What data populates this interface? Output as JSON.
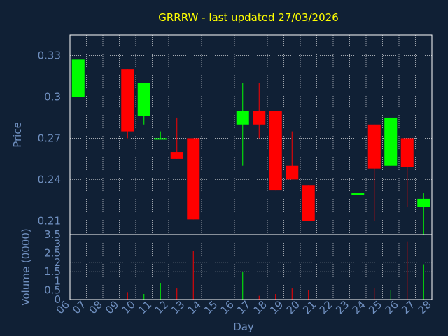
{
  "colors": {
    "background": "#102035",
    "axis_text": "#7090c0",
    "title": "#ffff00",
    "up": "#00ff00",
    "down": "#ff0000",
    "grid": "#ffffff"
  },
  "chart_data": {
    "type": "candlestick",
    "title": "GRRRW - last updated 27/03/2026",
    "xlabel": "Day",
    "x_ticks": [
      "06",
      "07",
      "08",
      "09",
      "10",
      "11",
      "12",
      "13",
      "14",
      "15",
      "16",
      "17",
      "18",
      "19",
      "20",
      "21",
      "22",
      "23",
      "24",
      "25",
      "26",
      "27",
      "28"
    ],
    "price_panel": {
      "ylabel": "Price",
      "ylim": [
        0.2,
        0.345
      ],
      "y_ticks": [
        "0.21",
        "0.24",
        "0.27",
        "0.3",
        "0.33"
      ],
      "y_tick_values": [
        0.21,
        0.24,
        0.27,
        0.3,
        0.33
      ],
      "grid": true
    },
    "volume_panel": {
      "ylabel": "Volume (0000)",
      "ylim": [
        0,
        3.5
      ],
      "y_ticks": [
        "0",
        "0.5",
        "1",
        "1.5",
        "2",
        "2.5",
        "3",
        "3.5"
      ],
      "y_tick_values": [
        0,
        0.5,
        1,
        1.5,
        2,
        2.5,
        3,
        3.5
      ],
      "grid": true
    },
    "candles": [
      {
        "day": 6,
        "open": 0.3,
        "high": 0.327,
        "low": 0.3,
        "close": 0.327,
        "volume": 0.0
      },
      {
        "day": 9,
        "open": 0.32,
        "high": 0.32,
        "low": 0.27,
        "close": 0.275,
        "volume": 0.4
      },
      {
        "day": 10,
        "open": 0.286,
        "high": 0.31,
        "low": 0.28,
        "close": 0.31,
        "volume": 0.3
      },
      {
        "day": 11,
        "open": 0.269,
        "high": 0.275,
        "low": 0.269,
        "close": 0.27,
        "volume": 0.9
      },
      {
        "day": 12,
        "open": 0.26,
        "high": 0.285,
        "low": 0.255,
        "close": 0.255,
        "volume": 0.6
      },
      {
        "day": 13,
        "open": 0.27,
        "high": 0.27,
        "low": 0.211,
        "close": 0.211,
        "volume": 2.6
      },
      {
        "day": 16,
        "open": 0.28,
        "high": 0.31,
        "low": 0.25,
        "close": 0.29,
        "volume": 1.5
      },
      {
        "day": 17,
        "open": 0.29,
        "high": 0.31,
        "low": 0.27,
        "close": 0.28,
        "volume": 0.2
      },
      {
        "day": 18,
        "open": 0.29,
        "high": 0.29,
        "low": 0.232,
        "close": 0.232,
        "volume": 0.3
      },
      {
        "day": 19,
        "open": 0.25,
        "high": 0.275,
        "low": 0.24,
        "close": 0.24,
        "volume": 0.6
      },
      {
        "day": 20,
        "open": 0.236,
        "high": 0.236,
        "low": 0.21,
        "close": 0.21,
        "volume": 0.5
      },
      {
        "day": 23,
        "open": 0.229,
        "high": 0.23,
        "low": 0.229,
        "close": 0.23,
        "volume": 0.0
      },
      {
        "day": 24,
        "open": 0.28,
        "high": 0.28,
        "low": 0.21,
        "close": 0.248,
        "volume": 0.6
      },
      {
        "day": 25,
        "open": 0.25,
        "high": 0.285,
        "low": 0.25,
        "close": 0.285,
        "volume": 0.5
      },
      {
        "day": 26,
        "open": 0.27,
        "high": 0.27,
        "low": 0.22,
        "close": 0.249,
        "volume": 3.1
      },
      {
        "day": 27,
        "open": 0.22,
        "high": 0.23,
        "low": 0.2,
        "close": 0.226,
        "volume": 1.9
      }
    ]
  }
}
